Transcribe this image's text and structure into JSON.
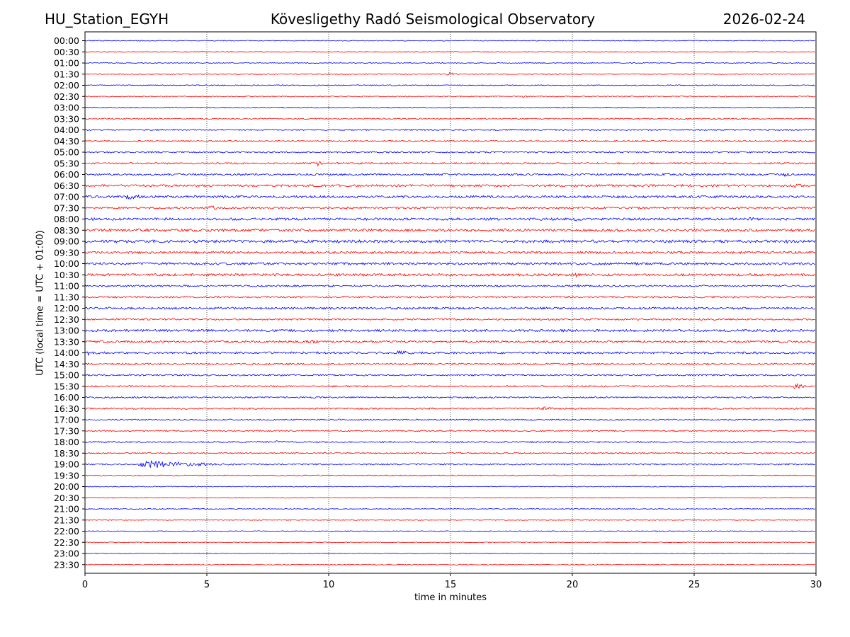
{
  "header": {
    "station": "HU_Station_EGYH",
    "observatory": "Kövesligethy Radó Seismological Observatory",
    "date": "2026-02-24"
  },
  "chart_data": {
    "type": "line",
    "title": "Kövesligethy Radó Seismological Observatory",
    "xlabel": "time in minutes",
    "ylabel": "UTC (local time = UTC + 01:00)",
    "xlim": [
      0,
      30
    ],
    "xticks": [
      0,
      5,
      10,
      15,
      20,
      25,
      30
    ],
    "grid": "vertical dotted at x ticks",
    "colors": {
      "even_row": "#0000ff",
      "odd_row": "#ff0000"
    },
    "row_labels": [
      "00:00",
      "00:30",
      "01:00",
      "01:30",
      "02:00",
      "02:30",
      "03:00",
      "03:30",
      "04:00",
      "04:30",
      "05:00",
      "05:30",
      "06:00",
      "06:30",
      "07:00",
      "07:30",
      "08:00",
      "08:30",
      "09:00",
      "09:30",
      "10:00",
      "10:30",
      "11:00",
      "11:30",
      "12:00",
      "12:30",
      "13:00",
      "13:30",
      "14:00",
      "14:30",
      "15:00",
      "15:30",
      "16:00",
      "16:30",
      "17:00",
      "17:30",
      "18:00",
      "18:30",
      "19:00",
      "19:30",
      "20:00",
      "20:30",
      "21:00",
      "21:30",
      "22:00",
      "22:30",
      "23:00",
      "23:30"
    ],
    "noise_level": [
      0.6,
      0.6,
      0.6,
      0.7,
      0.7,
      0.7,
      0.7,
      0.8,
      1.0,
      0.9,
      1.0,
      1.2,
      1.3,
      1.5,
      1.6,
      1.3,
      1.7,
      1.8,
      1.9,
      1.6,
      1.6,
      1.7,
      1.2,
      1.2,
      1.5,
      1.2,
      1.6,
      1.4,
      1.5,
      1.2,
      1.1,
      1.1,
      1.0,
      1.1,
      0.9,
      0.9,
      1.0,
      0.9,
      1.0,
      0.7,
      0.6,
      0.6,
      0.6,
      0.6,
      0.6,
      0.5,
      0.5,
      0.6
    ],
    "events": [
      {
        "row": "01:30",
        "start_min": 14.8,
        "dur_min": 0.8,
        "amp": 3
      },
      {
        "row": "02:30",
        "start_min": 17.9,
        "dur_min": 0.5,
        "amp": 2
      },
      {
        "row": "05:30",
        "start_min": 9.5,
        "dur_min": 0.4,
        "amp": 4
      },
      {
        "row": "06:00",
        "start_min": 28.5,
        "dur_min": 1.5,
        "amp": 2.5
      },
      {
        "row": "06:30",
        "start_min": 29.0,
        "dur_min": 1.0,
        "amp": 3
      },
      {
        "row": "07:00",
        "start_min": 1.5,
        "dur_min": 2.0,
        "amp": 3.5
      },
      {
        "row": "07:30",
        "start_min": 5.0,
        "dur_min": 0.8,
        "amp": 4
      },
      {
        "row": "08:00",
        "start_min": 20.0,
        "dur_min": 0.8,
        "amp": 3
      },
      {
        "row": "08:00",
        "start_min": 27.0,
        "dur_min": 2.0,
        "amp": 2.5
      },
      {
        "row": "08:30",
        "start_min": 17.0,
        "dur_min": 1.0,
        "amp": 3
      },
      {
        "row": "09:00",
        "start_min": 28.5,
        "dur_min": 1.5,
        "amp": 3
      },
      {
        "row": "10:30",
        "start_min": 20.0,
        "dur_min": 0.6,
        "amp": 4
      },
      {
        "row": "11:00",
        "start_min": 20.2,
        "dur_min": 0.3,
        "amp": 3
      },
      {
        "row": "13:30",
        "start_min": 9.0,
        "dur_min": 1.5,
        "amp": 3
      },
      {
        "row": "14:00",
        "start_min": 0.1,
        "dur_min": 0.2,
        "amp": 5
      },
      {
        "row": "14:00",
        "start_min": 12.5,
        "dur_min": 2.5,
        "amp": 3
      },
      {
        "row": "15:30",
        "start_min": 29.0,
        "dur_min": 1.0,
        "amp": 4
      },
      {
        "row": "16:30",
        "start_min": 18.5,
        "dur_min": 1.5,
        "amp": 3
      },
      {
        "row": "18:00",
        "start_min": 7.8,
        "dur_min": 0.3,
        "amp": 3
      },
      {
        "row": "19:00",
        "start_min": 2.0,
        "dur_min": 4.5,
        "amp": 6
      }
    ]
  }
}
